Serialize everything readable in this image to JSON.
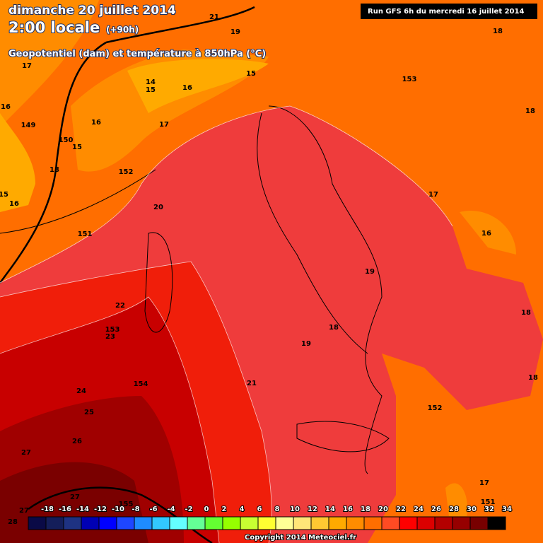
{
  "header": {
    "date": "dimanche 20 juillet 2014",
    "time": "2:00 locale",
    "lead": "(+90h)",
    "subtitle": "Geopotentiel (dam) et température à 850hPa (°C)",
    "run": "Run GFS 6h du mercredi 16 juillet 2014"
  },
  "colorbar": {
    "labels": [
      -18,
      -16,
      -14,
      -12,
      -10,
      -8,
      -6,
      -4,
      -2,
      0,
      2,
      4,
      6,
      8,
      10,
      12,
      14,
      16,
      18,
      20,
      22,
      24,
      26,
      28,
      30,
      32,
      34
    ],
    "colors": [
      "#0a0a46",
      "#141e5a",
      "#1e3282",
      "#0000b4",
      "#0000ff",
      "#1e46ff",
      "#1e8cff",
      "#32c8ff",
      "#64ffff",
      "#64ff96",
      "#64ff32",
      "#96ff00",
      "#c8ff32",
      "#ffff32",
      "#ffff96",
      "#ffe678",
      "#ffc832",
      "#ffaa00",
      "#ff8c00",
      "#ff6e00",
      "#ff4b23",
      "#ff0000",
      "#dc0000",
      "#b40000",
      "#960000",
      "#780000",
      "#000000"
    ]
  },
  "contour_labels": [
    21,
    19,
    18,
    17,
    15,
    153,
    14,
    15,
    16,
    16,
    18,
    16,
    17,
    149,
    150,
    15,
    18,
    152,
    15,
    17,
    16,
    20,
    16,
    151,
    19,
    22,
    18,
    153,
    23,
    18,
    19,
    154,
    21,
    18,
    24,
    152,
    25,
    26,
    27,
    17,
    155,
    151,
    27,
    27,
    28
  ],
  "copyright": "Copyright 2014 Meteociel.fr"
}
